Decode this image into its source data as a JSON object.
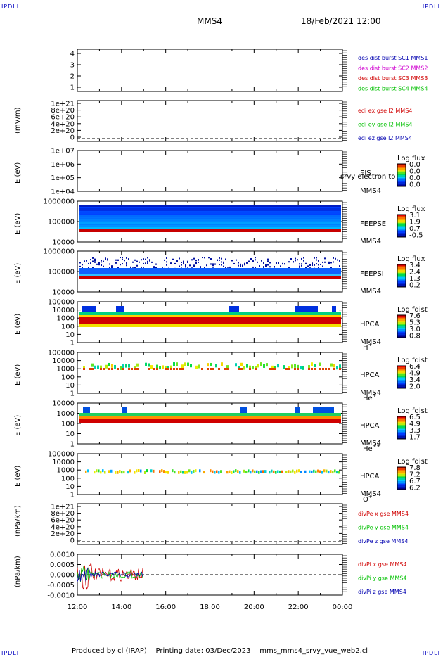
{
  "corners": {
    "tl": "IPDLI",
    "tr": "IPDLI",
    "bl": "IPDLI",
    "br": "IPDLI"
  },
  "header": {
    "spacecraft": "MMS4",
    "datetime": "18/Feb/2021 12:00"
  },
  "footer": {
    "text": "Produced by cl (IRAP)    Printing date: 03/Dec/2023    mms_mms4_srvy_vue_web2.cl"
  },
  "colors": {
    "blue": "#0000b0",
    "red": "#d00000",
    "green": "#00c000",
    "magenta": "#d000d0"
  },
  "chart_data": [
    {
      "type": "line",
      "panel": "burst",
      "yticks": [
        "4",
        "3",
        "2",
        "1"
      ],
      "legend": [
        {
          "name": "des dist burst SC1 MMS1",
          "color": "#0000b0"
        },
        {
          "name": "des dist burst SC2 MMS2",
          "color": "#d000d0"
        },
        {
          "name": "des dist burst SC3 MMS3",
          "color": "#d00000"
        },
        {
          "name": "des dist burst SC4 MMS4",
          "color": "#00c000"
        }
      ]
    },
    {
      "type": "line",
      "panel": "edi_e",
      "ylabel": "(mV/m)",
      "yticks": [
        "1e+21",
        "8e+20",
        "6e+20",
        "4e+20",
        "2e+20",
        "0"
      ],
      "legend": [
        {
          "name": "edi ex gse l2 MMS4",
          "color": "#d00000"
        },
        {
          "name": "edi ey gse l2 MMS4",
          "color": "#00c000"
        },
        {
          "name": "edi ez gse l2 MMS4",
          "color": "#0000b0"
        }
      ]
    },
    {
      "type": "heatmap",
      "panel": "eis",
      "ylabel": "E (eV)",
      "yticks": [
        "1e+07",
        "1e+06",
        "1e+05",
        "1e+04"
      ],
      "instrument": "EIS",
      "sc": "MMS4",
      "overlay_text": "srvy electron to",
      "colorbar": {
        "title": "Log flux",
        "ticks": [
          "0.0",
          "0.0",
          "0.0",
          "0.0"
        ]
      }
    },
    {
      "type": "heatmap",
      "panel": "feeps_e",
      "ylabel": "E (eV)",
      "yticks": [
        "1000000",
        "100000",
        "10000"
      ],
      "instrument": "FEEPSE",
      "sc": "MMS4",
      "colorbar": {
        "title": "Log flux",
        "ticks": [
          "3.1",
          "1.9",
          "0.7",
          "-0.5"
        ]
      }
    },
    {
      "type": "heatmap",
      "panel": "feeps_i",
      "ylabel": "E (eV)",
      "yticks": [
        "1000000",
        "100000",
        "10000"
      ],
      "instrument": "FEEPSI",
      "sc": "MMS4",
      "colorbar": {
        "title": "Log flux",
        "ticks": [
          "3.4",
          "2.4",
          "1.3",
          "0.2"
        ]
      }
    },
    {
      "type": "heatmap",
      "panel": "hpca_h",
      "ylabel": "E (eV)",
      "yticks": [
        "100000",
        "10000",
        "1000",
        "100",
        "10",
        "1"
      ],
      "instrument": "HPCA",
      "sc": "MMS4",
      "species": "H",
      "charge": "+",
      "colorbar": {
        "title": "Log fdist",
        "ticks": [
          "7.6",
          "5.3",
          "3.0",
          "0.8"
        ]
      }
    },
    {
      "type": "heatmap",
      "panel": "hpca_he1",
      "ylabel": "E (eV)",
      "yticks": [
        "100000",
        "10000",
        "1000",
        "100",
        "10",
        "1"
      ],
      "instrument": "HPCA",
      "sc": "MMS4",
      "species": "He",
      "charge": "+",
      "colorbar": {
        "title": "Log fdist",
        "ticks": [
          "6.4",
          "4.9",
          "3.4",
          "2.0"
        ]
      }
    },
    {
      "type": "heatmap",
      "panel": "hpca_he2",
      "ylabel": "E (eV)",
      "yticks": [
        "10000",
        "1000",
        "100",
        "10",
        "1"
      ],
      "instrument": "HPCA",
      "sc": "MMS4",
      "species": "He",
      "charge": "++",
      "colorbar": {
        "title": "Log fdist",
        "ticks": [
          "6.5",
          "4.9",
          "3.3",
          "1.7"
        ]
      }
    },
    {
      "type": "heatmap",
      "panel": "hpca_o",
      "ylabel": "E (eV)",
      "yticks": [
        "100000",
        "10000",
        "1000",
        "100",
        "10",
        "1"
      ],
      "instrument": "HPCA",
      "sc": "MMS4",
      "species": "O",
      "charge": "+",
      "colorbar": {
        "title": "Log fdist",
        "ticks": [
          "7.8",
          "7.2",
          "6.7",
          "6.2"
        ]
      }
    },
    {
      "type": "line",
      "panel": "divpe",
      "ylabel": "(nPa/km)",
      "yticks": [
        "1e+21",
        "8e+20",
        "6e+20",
        "4e+20",
        "2e+20",
        "0"
      ],
      "legend": [
        {
          "name": "divPe x gse MMS4",
          "color": "#d00000"
        },
        {
          "name": "divPe y gse MMS4",
          "color": "#00c000"
        },
        {
          "name": "divPe z gse MMS4",
          "color": "#0000b0"
        }
      ]
    },
    {
      "type": "line",
      "panel": "divpi",
      "ylabel": "(nPa/km)",
      "yticks": [
        "0.0010",
        "0.0005",
        "0.0000",
        "-0.0005",
        "-0.0010"
      ],
      "ylim": [
        -0.0012,
        0.0012
      ],
      "data_range_hours": [
        12,
        15
      ],
      "legend": [
        {
          "name": "divPi x gse MMS4",
          "color": "#d00000"
        },
        {
          "name": "divPi y gse MMS4",
          "color": "#00c000"
        },
        {
          "name": "divPi z gse MMS4",
          "color": "#0000b0"
        }
      ]
    }
  ],
  "xaxis": {
    "ticks": [
      "12:00",
      "14:00",
      "16:00",
      "18:00",
      "20:00",
      "22:00",
      "00:00"
    ]
  }
}
